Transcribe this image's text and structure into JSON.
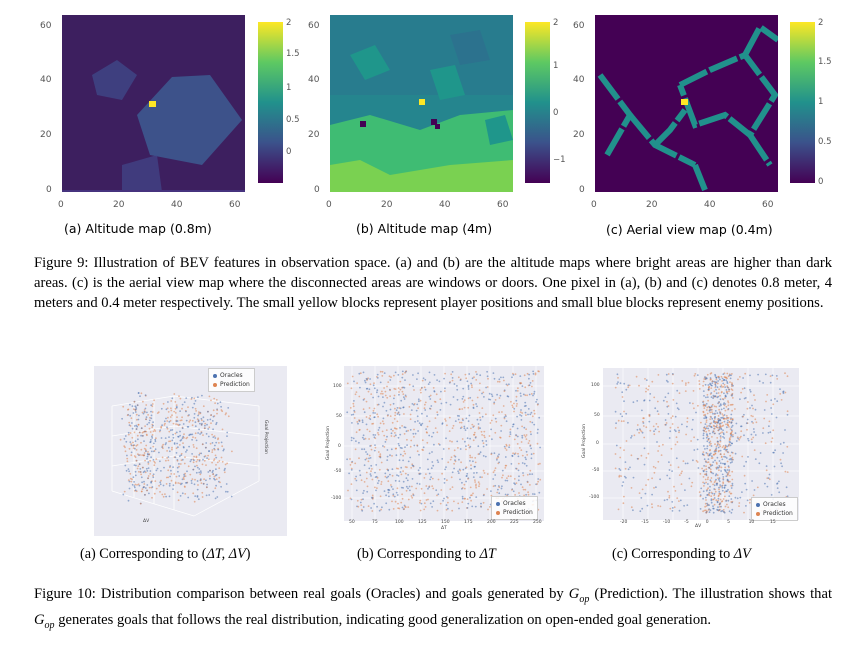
{
  "figure9": {
    "panels": [
      {
        "subcaption": "(a) Altitude map (0.8m)",
        "y_ticks": [
          "60",
          "40",
          "20",
          "0"
        ],
        "x_ticks": [
          "0",
          "20",
          "40",
          "60"
        ],
        "colorbar_ticks": [
          "2",
          "1.5",
          "1",
          "0.5",
          "0"
        ]
      },
      {
        "subcaption": "(b) Altitude map (4m)",
        "y_ticks": [
          "60",
          "40",
          "20",
          "0"
        ],
        "x_ticks": [
          "0",
          "20",
          "40",
          "60"
        ],
        "colorbar_ticks": [
          "2",
          "1",
          "0",
          "−1"
        ]
      },
      {
        "subcaption": "(c) Aerial view map (0.4m)",
        "y_ticks": [
          "60",
          "40",
          "20",
          "0"
        ],
        "x_ticks": [
          "0",
          "20",
          "40",
          "60"
        ],
        "colorbar_ticks": [
          "2",
          "1.5",
          "1",
          "0.5",
          "0"
        ]
      }
    ],
    "caption": "Figure 9: Illustration of BEV features in observation space. (a) and (b) are the altitude maps where bright areas are higher than dark areas. (c) is the aerial view map where the disconnected areas are windows or doors. One pixel in (a), (b) and (c) denotes 0.8 meter, 4 meters and 0.4 meter respectively. The small yellow blocks represent player positions and small blue blocks represent enemy positions."
  },
  "figure10": {
    "legend": {
      "oracles": "Oracles",
      "prediction": "Prediction"
    },
    "panel_a": {
      "subcaption_prefix": "(a) Corresponding to (",
      "subcaption_math": "ΔT, ΔV",
      "subcaption_suffix": ")",
      "axis_x": "ΔV",
      "axis_z": "Goal Projection"
    },
    "panel_b": {
      "subcaption_prefix": "(b) Corresponding to ",
      "subcaption_math": "ΔT",
      "axis_x": "ΔT",
      "axis_y": "Goal Projection",
      "y_ticks": [
        "100",
        "50",
        "0",
        "-50",
        "-100"
      ],
      "x_ticks": [
        "50",
        "75",
        "100",
        "125",
        "150",
        "175",
        "200",
        "225",
        "250"
      ]
    },
    "panel_c": {
      "subcaption_prefix": "(c) Corresponding to ",
      "subcaption_math": "ΔV",
      "axis_x": "ΔV",
      "axis_y": "Goal Projection",
      "y_ticks": [
        "100",
        "50",
        "0",
        "-50",
        "-100"
      ],
      "x_ticks": [
        "-20",
        "-15",
        "-10",
        "-5",
        "0",
        "5",
        "10",
        "15"
      ]
    },
    "caption_part1": "Figure 10: Distribution comparison between real goals (Oracles) and goals generated by ",
    "caption_gop": "G",
    "caption_gop_sub": "op",
    "caption_part2": " (Prediction). The illustration shows that ",
    "caption_part3": " generates goals that follows the real distribution, indicating good generalization on open-ended goal generation."
  },
  "colors": {
    "oracles": "#4c72b0",
    "prediction": "#dd8452",
    "viridis_low": "#440154",
    "viridis_high": "#fde725"
  }
}
